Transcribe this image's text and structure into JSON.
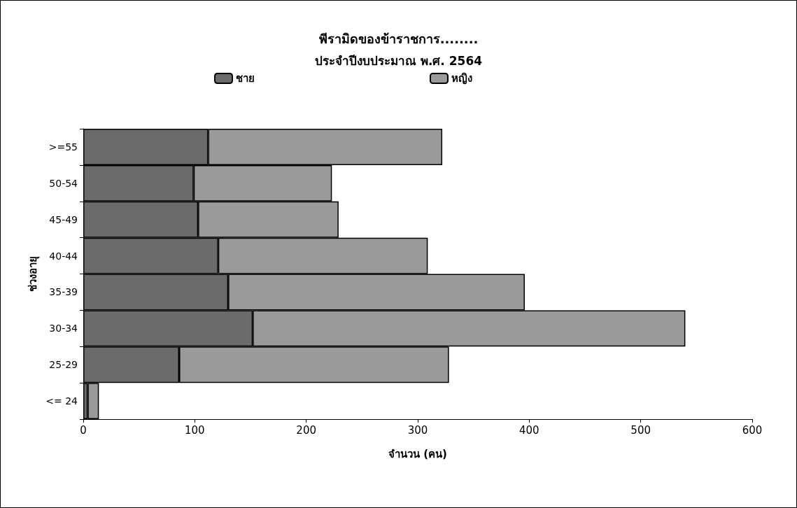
{
  "chart_data": {
    "type": "bar",
    "orientation": "horizontal",
    "stacked": true,
    "title": "พีรามิดของข้าราชการ........",
    "subtitle": "ประจำปีงบประมาณ พ.ศ. 2564",
    "xlabel": "จำนวน (คน)",
    "ylabel": "ช่วงอายุ",
    "categories": [
      ">=55",
      "50-54",
      "45-49",
      "40-44",
      "35-39",
      "30-34",
      "25-29",
      "<= 24"
    ],
    "series": [
      {
        "name": "ชาย",
        "color": "#6b6b6b",
        "values": [
          112,
          99,
          103,
          121,
          130,
          152,
          86,
          4
        ]
      },
      {
        "name": "หญิง",
        "color": "#9a9a9a",
        "values": [
          210,
          124,
          126,
          188,
          266,
          388,
          242,
          10
        ]
      }
    ],
    "xlim": [
      0,
      600
    ],
    "xticks": [
      0,
      100,
      200,
      300,
      400,
      500,
      600
    ],
    "grid": false,
    "legend": "top"
  }
}
